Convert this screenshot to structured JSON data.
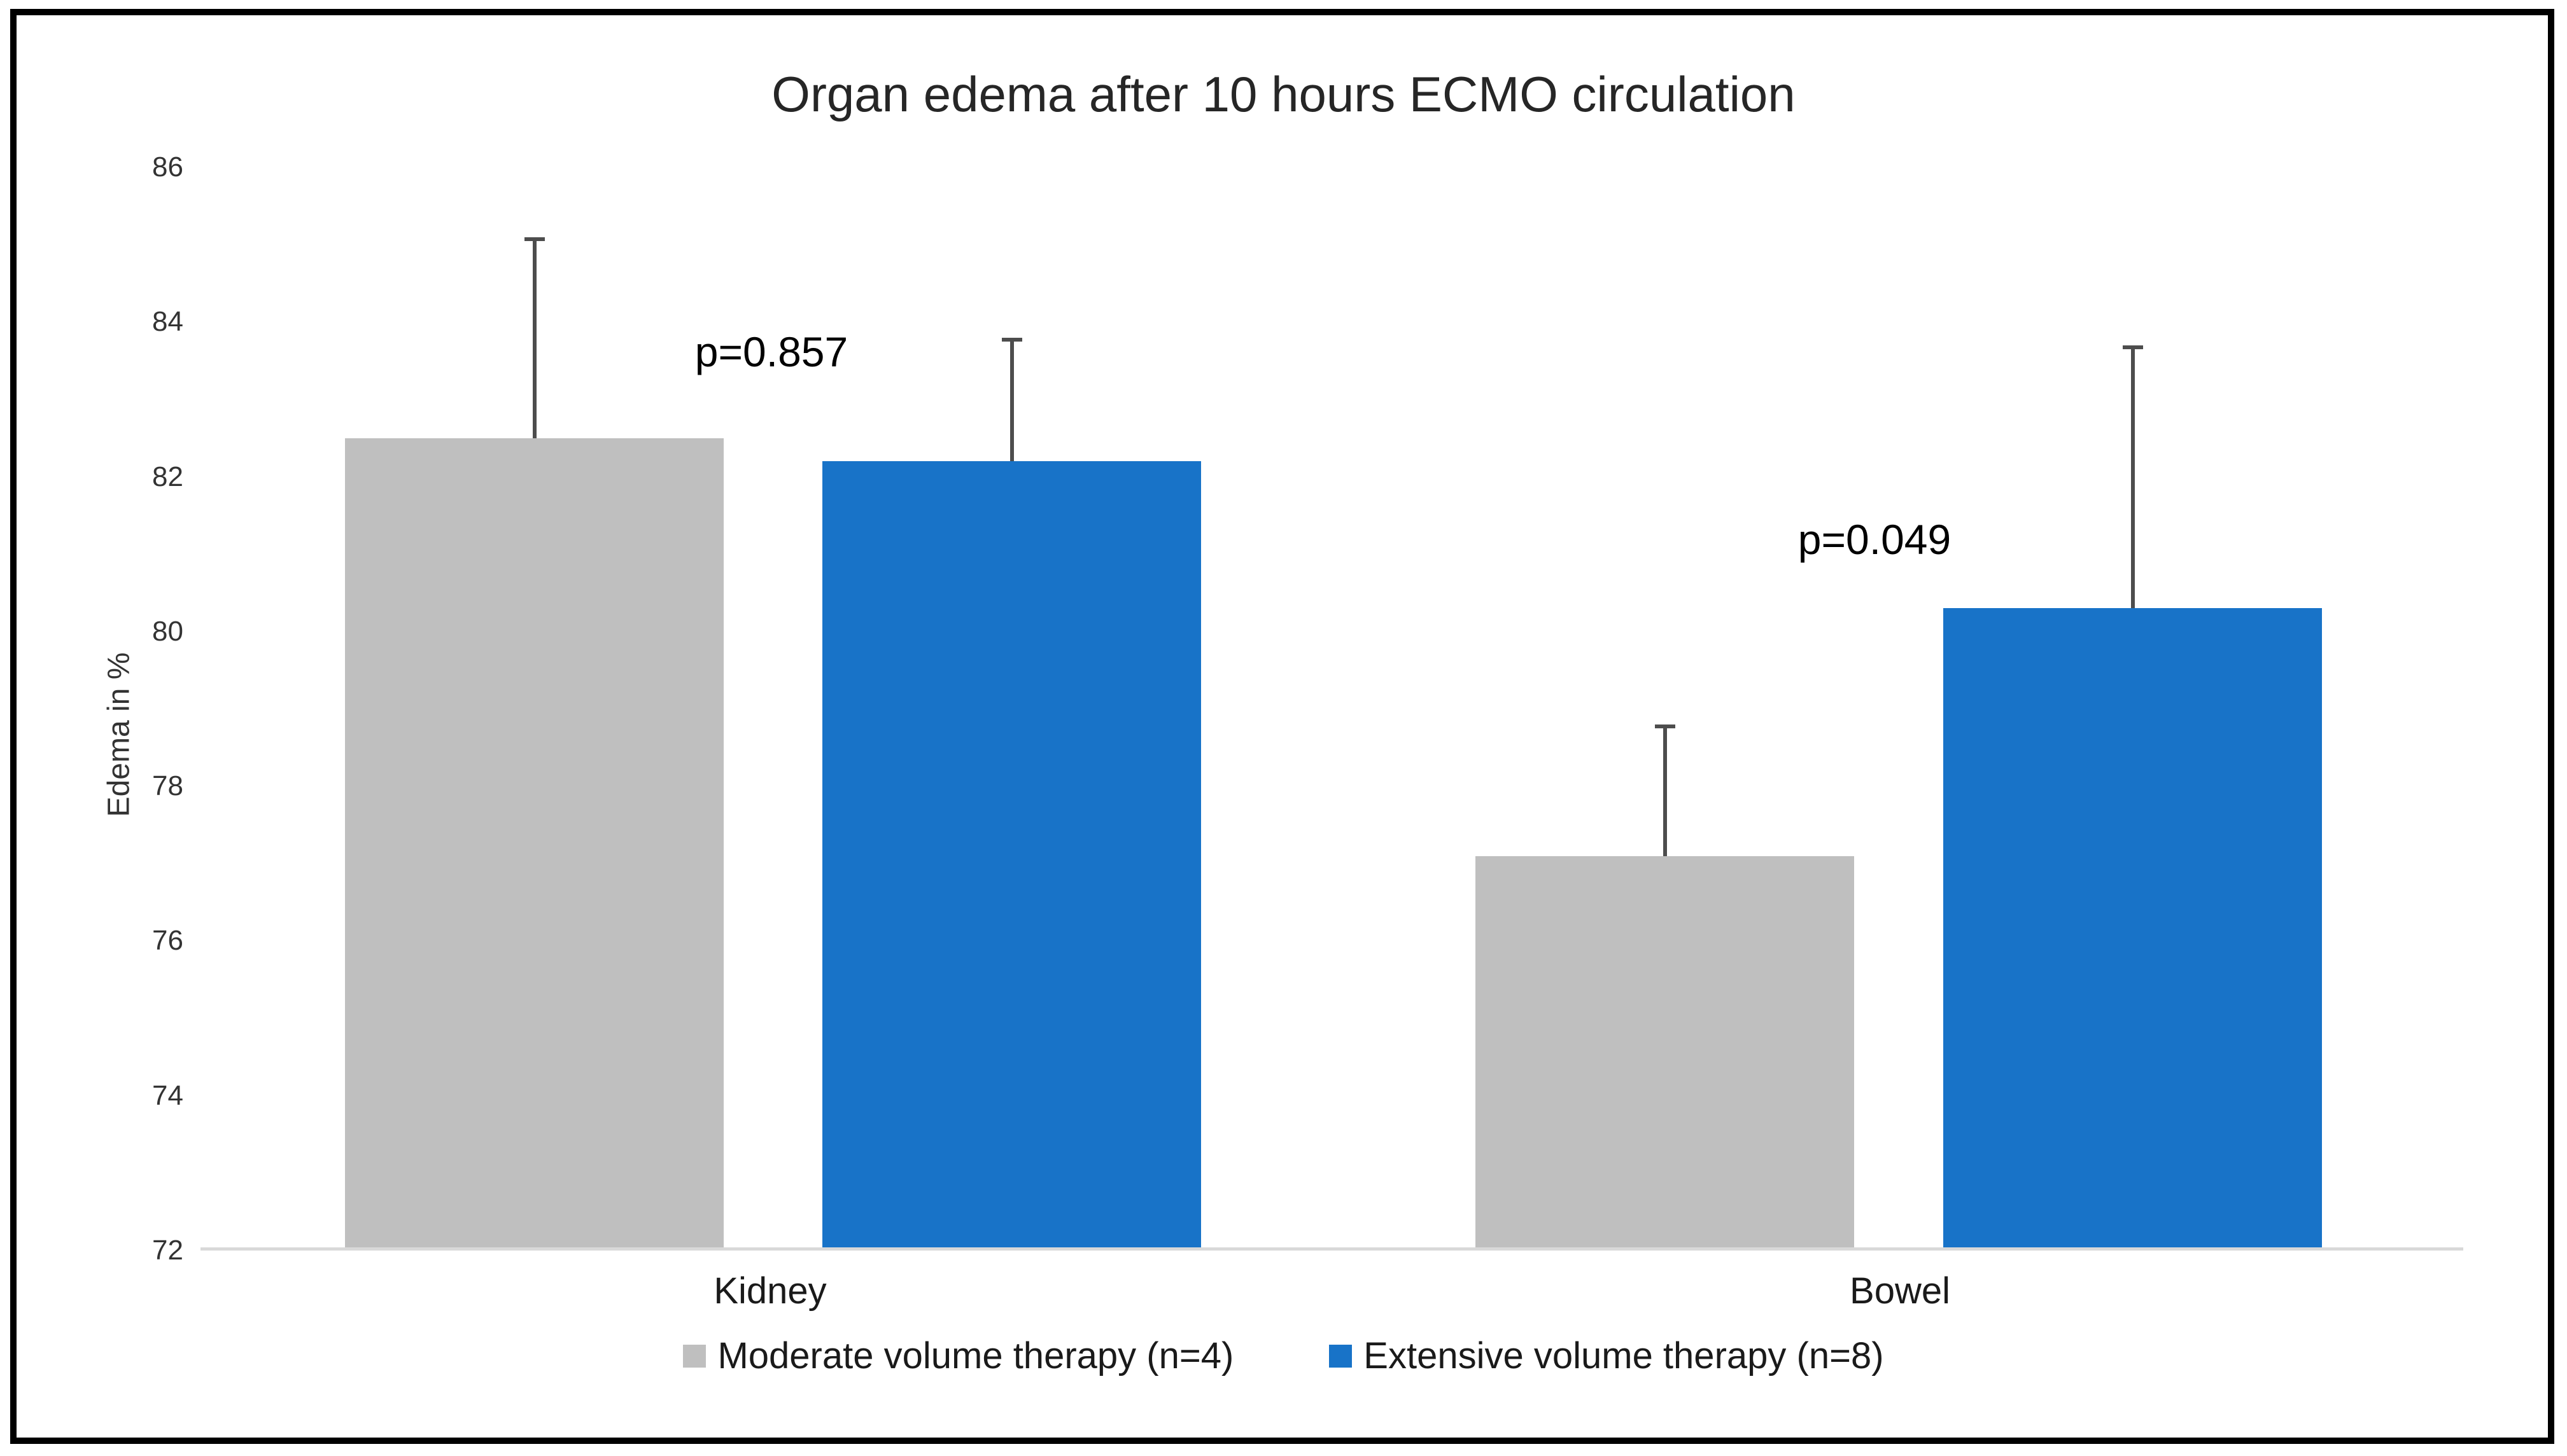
{
  "chart": {
    "title": "Organ edema after 10 hours ECMO circulation",
    "y_axis_label": "Edema in %"
  },
  "chart_data": {
    "type": "bar",
    "title": "Organ edema after 10 hours ECMO circulation",
    "categories": [
      "Kidney",
      "Bowel"
    ],
    "series": [
      {
        "name": "Moderate volume therapy (n=4)",
        "color": "#BFBFBF",
        "values": [
          82.5,
          77.1
        ],
        "error_plus": [
          2.6,
          1.7
        ]
      },
      {
        "name": "Extensive volume therapy (n=8)",
        "color": "#1873C8",
        "values": [
          82.2,
          80.3
        ],
        "error_plus": [
          1.6,
          3.4
        ]
      }
    ],
    "annotations": [
      {
        "text": "p=0.857",
        "category": "Kidney"
      },
      {
        "text": "p=0.049",
        "category": "Bowel"
      }
    ],
    "xlabel": "",
    "ylabel": "Edema in %",
    "ylim": [
      72,
      86
    ],
    "yticks": [
      86,
      84,
      82,
      80,
      78,
      76,
      74,
      72
    ],
    "grid": false,
    "legend_position": "bottom",
    "error_bar_color": "#4D4D4D",
    "axis_line_color": "#D9D9D9",
    "bar_colors": {
      "moderate": "#BFBFBF",
      "extensive": "#1873C8"
    }
  }
}
